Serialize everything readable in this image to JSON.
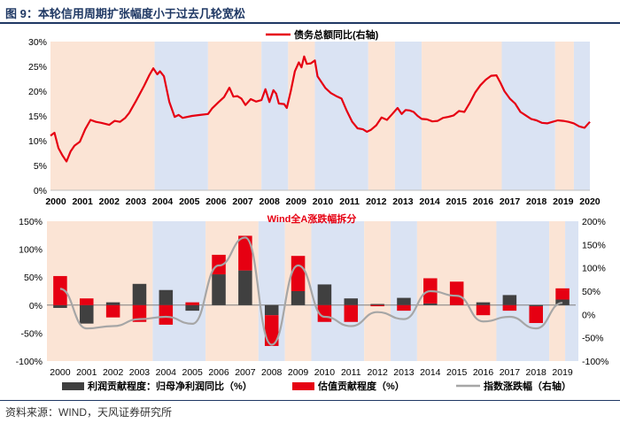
{
  "figure": {
    "title": "图 9：本轮信用周期扩张幅度小于过去几轮宽松",
    "source": "资料来源：WIND，天风证券研究所"
  },
  "colors": {
    "red": "#e60012",
    "dark_bar": "#404040",
    "gray_line": "#a6a6a6",
    "shade_peach": "#fbe4d5",
    "shade_blue": "#dae3f3",
    "title_blue": "#1f3864"
  },
  "chart_data": [
    {
      "type": "line",
      "title": "",
      "legend": "债务总额同比(右轴)",
      "legend_position": "top-center",
      "x_ticks": [
        "2000",
        "2001",
        "2002",
        "2003",
        "2004",
        "2005",
        "2006",
        "2007",
        "2008",
        "2009",
        "2010",
        "2011",
        "2012",
        "2013",
        "2014",
        "2015",
        "2016",
        "2017",
        "2018",
        "2019",
        "2020"
      ],
      "y_ticks": [
        "30%",
        "25%",
        "20%",
        "15%",
        "10%",
        "5%",
        "0%"
      ],
      "ylim": [
        0,
        30
      ],
      "xlim": [
        2000,
        2020.2
      ],
      "shaded_periods": [
        {
          "start": 2000.0,
          "end": 2003.9,
          "phase": "easing"
        },
        {
          "start": 2003.9,
          "end": 2005.9,
          "phase": "tightening"
        },
        {
          "start": 2005.9,
          "end": 2007.9,
          "phase": "easing"
        },
        {
          "start": 2007.9,
          "end": 2008.9,
          "phase": "tightening"
        },
        {
          "start": 2008.9,
          "end": 2009.9,
          "phase": "easing"
        },
        {
          "start": 2009.9,
          "end": 2011.9,
          "phase": "tightening"
        },
        {
          "start": 2011.9,
          "end": 2012.9,
          "phase": "easing"
        },
        {
          "start": 2012.9,
          "end": 2013.9,
          "phase": "tightening"
        },
        {
          "start": 2013.9,
          "end": 2016.9,
          "phase": "easing"
        },
        {
          "start": 2016.9,
          "end": 2018.9,
          "phase": "tightening"
        },
        {
          "start": 2018.9,
          "end": 2019.6,
          "phase": "easing"
        },
        {
          "start": 2019.6,
          "end": 2020.2,
          "phase": "tightening"
        }
      ],
      "series": [
        {
          "name": "债务总额同比(右轴)",
          "points": [
            [
              2000.0,
              11.0
            ],
            [
              2000.15,
              11.6
            ],
            [
              2000.3,
              8.5
            ],
            [
              2000.45,
              7.0
            ],
            [
              2000.6,
              5.8
            ],
            [
              2000.75,
              7.8
            ],
            [
              2000.9,
              9.0
            ],
            [
              2001.1,
              9.8
            ],
            [
              2001.3,
              12.3
            ],
            [
              2001.5,
              14.2
            ],
            [
              2001.7,
              13.8
            ],
            [
              2001.9,
              13.6
            ],
            [
              2002.2,
              13.2
            ],
            [
              2002.4,
              14.0
            ],
            [
              2002.6,
              13.8
            ],
            [
              2002.8,
              14.6
            ],
            [
              2002.95,
              15.6
            ],
            [
              2003.2,
              18.0
            ],
            [
              2003.5,
              21.0
            ],
            [
              2003.7,
              23.2
            ],
            [
              2003.85,
              24.6
            ],
            [
              2004.0,
              23.4
            ],
            [
              2004.1,
              24.0
            ],
            [
              2004.25,
              23.0
            ],
            [
              2004.45,
              17.8
            ],
            [
              2004.65,
              14.8
            ],
            [
              2004.8,
              15.2
            ],
            [
              2004.95,
              14.6
            ],
            [
              2005.3,
              15.0
            ],
            [
              2005.6,
              15.2
            ],
            [
              2005.9,
              15.4
            ],
            [
              2006.05,
              16.5
            ],
            [
              2006.3,
              17.8
            ],
            [
              2006.5,
              18.8
            ],
            [
              2006.7,
              20.7
            ],
            [
              2006.85,
              18.9
            ],
            [
              2007.0,
              19.0
            ],
            [
              2007.15,
              18.5
            ],
            [
              2007.3,
              17.2
            ],
            [
              2007.5,
              18.4
            ],
            [
              2007.7,
              17.9
            ],
            [
              2007.9,
              18.2
            ],
            [
              2008.05,
              20.4
            ],
            [
              2008.2,
              17.8
            ],
            [
              2008.35,
              20.2
            ],
            [
              2008.45,
              19.5
            ],
            [
              2008.55,
              17.5
            ],
            [
              2008.75,
              17.4
            ],
            [
              2008.85,
              16.6
            ],
            [
              2009.0,
              20.0
            ],
            [
              2009.15,
              24.0
            ],
            [
              2009.3,
              25.8
            ],
            [
              2009.4,
              24.8
            ],
            [
              2009.5,
              27.0
            ],
            [
              2009.6,
              25.5
            ],
            [
              2009.75,
              25.6
            ],
            [
              2009.9,
              26.2
            ],
            [
              2010.0,
              23.0
            ],
            [
              2010.3,
              20.6
            ],
            [
              2010.5,
              19.6
            ],
            [
              2010.7,
              19.0
            ],
            [
              2010.9,
              18.5
            ],
            [
              2011.1,
              16.0
            ],
            [
              2011.3,
              13.8
            ],
            [
              2011.5,
              12.5
            ],
            [
              2011.7,
              12.3
            ],
            [
              2011.85,
              11.8
            ],
            [
              2012.0,
              12.2
            ],
            [
              2012.2,
              13.1
            ],
            [
              2012.4,
              14.7
            ],
            [
              2012.6,
              14.2
            ],
            [
              2012.8,
              15.4
            ],
            [
              2013.0,
              16.6
            ],
            [
              2013.15,
              15.4
            ],
            [
              2013.3,
              16.2
            ],
            [
              2013.45,
              16.1
            ],
            [
              2013.6,
              15.8
            ],
            [
              2013.75,
              15.0
            ],
            [
              2013.9,
              14.4
            ],
            [
              2014.1,
              14.3
            ],
            [
              2014.3,
              13.9
            ],
            [
              2014.5,
              14.0
            ],
            [
              2014.7,
              14.6
            ],
            [
              2014.9,
              14.8
            ],
            [
              2015.1,
              15.1
            ],
            [
              2015.3,
              16.0
            ],
            [
              2015.5,
              15.8
            ],
            [
              2015.7,
              17.6
            ],
            [
              2015.9,
              19.7
            ],
            [
              2016.1,
              21.2
            ],
            [
              2016.3,
              22.3
            ],
            [
              2016.5,
              23.1
            ],
            [
              2016.7,
              23.2
            ],
            [
              2016.85,
              21.7
            ],
            [
              2017.0,
              20.0
            ],
            [
              2017.2,
              18.5
            ],
            [
              2017.4,
              17.5
            ],
            [
              2017.6,
              15.8
            ],
            [
              2017.8,
              15.1
            ],
            [
              2018.0,
              14.4
            ],
            [
              2018.2,
              14.1
            ],
            [
              2018.4,
              13.6
            ],
            [
              2018.6,
              13.5
            ],
            [
              2018.8,
              13.8
            ],
            [
              2019.0,
              14.1
            ],
            [
              2019.2,
              14.0
            ],
            [
              2019.4,
              13.8
            ],
            [
              2019.6,
              13.5
            ],
            [
              2019.8,
              12.9
            ],
            [
              2020.0,
              12.6
            ],
            [
              2020.2,
              13.8
            ]
          ]
        }
      ]
    },
    {
      "type": "bar",
      "title": "Wind全A涨跌幅拆分",
      "categories": [
        "2000",
        "2001",
        "2002",
        "2003",
        "2004",
        "2005",
        "2006",
        "2007",
        "2008",
        "2009",
        "2010",
        "2011",
        "2012",
        "2013",
        "2014",
        "2015",
        "2016",
        "2017",
        "2018",
        "2019"
      ],
      "y_ticks_left": [
        "150%",
        "100%",
        "50%",
        "0%",
        "-50%",
        "-100%"
      ],
      "y_ticks_right": [
        "200%",
        "150%",
        "100%",
        "50%",
        "0%",
        "-50%",
        "-100%"
      ],
      "ylim_left": [
        -100,
        150
      ],
      "ylim_right": [
        -100,
        200
      ],
      "legend_position": "bottom",
      "series": [
        {
          "name": "利润贡献程度：归母净利润同比（%）",
          "axis": "left",
          "stack": true,
          "values": [
            -5,
            -33,
            5,
            38,
            27,
            -10,
            55,
            62,
            -18,
            25,
            37,
            12,
            2,
            13,
            3,
            0,
            5,
            18,
            -2,
            10
          ]
        },
        {
          "name": "估值贡献程度（%）",
          "axis": "left",
          "stack": true,
          "values": [
            52,
            12,
            -22,
            -30,
            -35,
            5,
            35,
            62,
            -55,
            63,
            -30,
            -30,
            -2,
            -10,
            45,
            42,
            -18,
            -10,
            -30,
            20
          ]
        },
        {
          "name": "指数涨跌幅（右轴）",
          "axis": "right",
          "type": "line",
          "values": [
            55,
            -30,
            -25,
            -10,
            -5,
            -20,
            105,
            165,
            -65,
            105,
            -5,
            -25,
            5,
            -10,
            50,
            40,
            -15,
            -5,
            -30,
            25
          ]
        }
      ]
    }
  ]
}
